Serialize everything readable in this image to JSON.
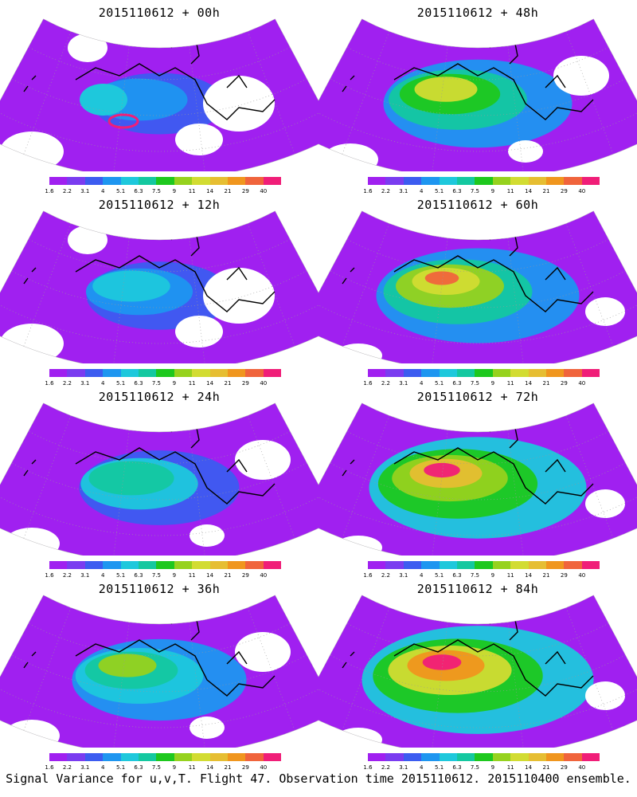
{
  "panels": [
    {
      "title": "2015110612 + 00h",
      "intensity": 0
    },
    {
      "title": "2015110612 + 48h",
      "intensity": 4
    },
    {
      "title": "2015110612 + 12h",
      "intensity": 1
    },
    {
      "title": "2015110612 + 60h",
      "intensity": 5
    },
    {
      "title": "2015110612 + 24h",
      "intensity": 2
    },
    {
      "title": "2015110612 + 72h",
      "intensity": 6
    },
    {
      "title": "2015110612 + 36h",
      "intensity": 3
    },
    {
      "title": "2015110612 + 84h",
      "intensity": 7
    }
  ],
  "colorbar": {
    "labels": [
      "1.6",
      "2.2",
      "3.1",
      "4",
      "5.1",
      "6.3",
      "7.5",
      "9",
      "11",
      "14",
      "21",
      "29",
      "40"
    ],
    "colors": [
      "#a020f0",
      "#7a3cf0",
      "#3c5cf0",
      "#1e96f0",
      "#1ec8dc",
      "#14c8a0",
      "#1ec81e",
      "#96d21e",
      "#d2dc32",
      "#e6be32",
      "#f0961e",
      "#f0643c",
      "#f01e78"
    ]
  },
  "caption": "Signal Variance for u,v,T. Flight 47. Observation time 2015110612. 2015110400 ensemble."
}
